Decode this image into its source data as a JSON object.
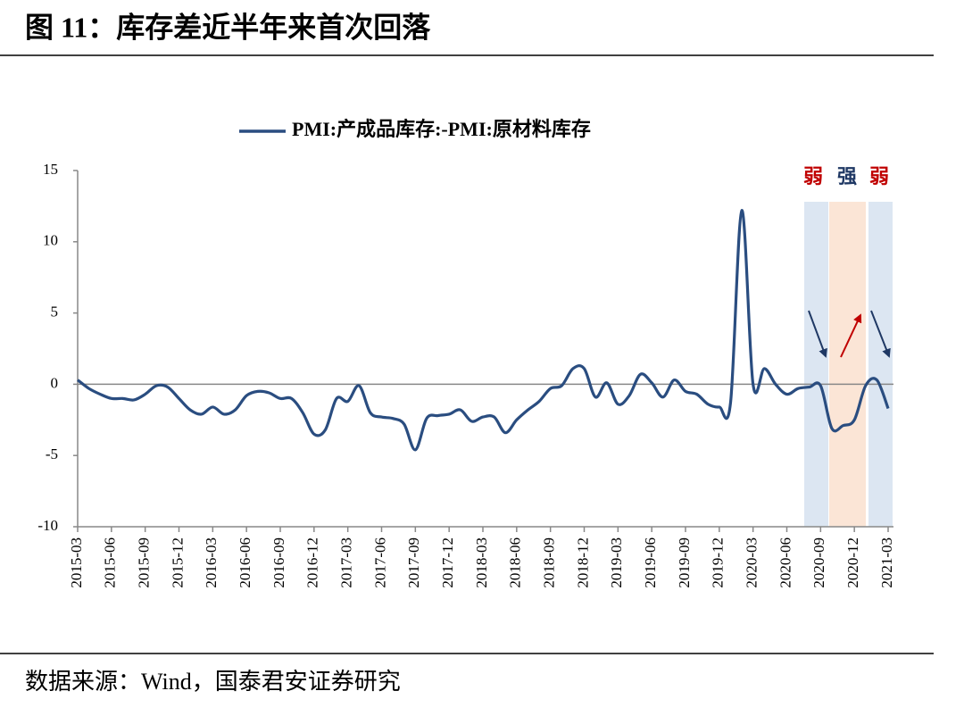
{
  "header": {
    "title": "图 11：库存差近半年来首次回落"
  },
  "chart_data": {
    "type": "line",
    "categories": [
      "2015-03",
      null,
      null,
      "2015-06",
      null,
      null,
      "2015-09",
      null,
      null,
      "2015-12",
      null,
      null,
      "2016-03",
      null,
      null,
      "2016-06",
      null,
      null,
      "2016-09",
      null,
      null,
      "2016-12",
      null,
      null,
      "2017-03",
      null,
      null,
      "2017-06",
      null,
      null,
      "2017-09",
      null,
      null,
      "2017-12",
      null,
      null,
      "2018-03",
      null,
      null,
      "2018-06",
      null,
      null,
      "2018-09",
      null,
      null,
      "2018-12",
      null,
      null,
      "2019-03",
      null,
      null,
      "2019-06",
      null,
      null,
      "2019-09",
      null,
      null,
      "2019-12",
      null,
      null,
      "2020-03",
      null,
      null,
      "2020-06",
      null,
      null,
      "2020-09",
      null,
      null,
      "2020-12",
      null,
      null,
      "2021-03"
    ],
    "series": [
      {
        "name": "PMI:产成品库存:-PMI:原材料库存",
        "color": "#2a4d80",
        "values": [
          0.3,
          -0.3,
          -0.7,
          -1.0,
          -1.0,
          -1.1,
          -0.7,
          -0.1,
          -0.2,
          -1.0,
          -1.8,
          -2.1,
          -1.6,
          -2.1,
          -1.8,
          -0.8,
          -0.5,
          -0.6,
          -1.0,
          -1.0,
          -2.0,
          -3.5,
          -3.2,
          -1.0,
          -1.2,
          -0.1,
          -2.0,
          -2.3,
          -2.4,
          -2.8,
          -4.6,
          -2.4,
          -2.2,
          -2.1,
          -1.8,
          -2.6,
          -2.3,
          -2.3,
          -3.4,
          -2.5,
          -1.8,
          -1.2,
          -0.3,
          -0.1,
          1.1,
          1.1,
          -0.9,
          0.1,
          -1.4,
          -0.8,
          0.7,
          0.1,
          -0.9,
          0.3,
          -0.5,
          -0.7,
          -1.4,
          -1.6,
          -1.3,
          12.2,
          0.0,
          1.1,
          0.0,
          -0.7,
          -0.3,
          -0.2,
          -0.1,
          -3.1,
          -2.9,
          -2.5,
          -0.1,
          0.3,
          -1.7
        ]
      }
    ],
    "ylim": [
      -10,
      15
    ],
    "yticks": [
      -10,
      -5,
      0,
      5,
      10,
      15
    ],
    "legend": "top",
    "annotations": [
      {
        "text": "弱",
        "color": "#c00000"
      },
      {
        "text": "强",
        "color": "#1f3864"
      },
      {
        "text": "弱",
        "color": "#c00000"
      }
    ]
  },
  "footer": {
    "source": "数据来源：Wind，国泰君安证券研究"
  }
}
